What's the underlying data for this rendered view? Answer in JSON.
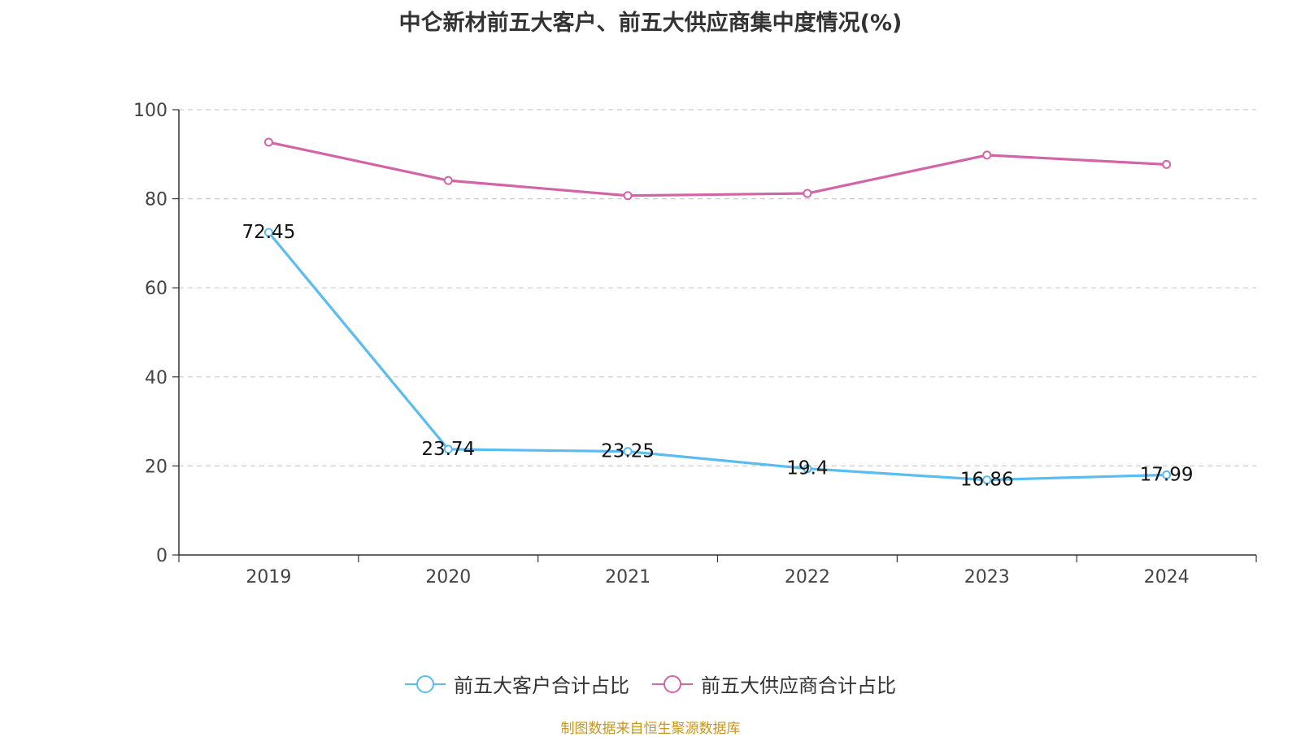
{
  "chart_data": {
    "type": "line",
    "title": "中仑新材前五大客户、前五大供应商集中度情况(%)",
    "categories": [
      "2019",
      "2020",
      "2021",
      "2022",
      "2023",
      "2024"
    ],
    "ylim": [
      0,
      100
    ],
    "yticks": [
      0,
      20,
      40,
      60,
      80,
      100
    ],
    "grid": true,
    "legend_position": "bottom",
    "series": [
      {
        "name": "前五大客户合计占比",
        "color": "#5bbcf0",
        "values": [
          72.45,
          23.74,
          23.25,
          19.4,
          16.86,
          17.99
        ],
        "labels": [
          "72.45",
          "23.74",
          "23.25",
          "19.4",
          "16.86",
          "17.99"
        ],
        "show_labels": true
      },
      {
        "name": "前五大供应商合计占比",
        "color": "#d264a8",
        "values": [
          92.7,
          84.1,
          80.7,
          81.2,
          89.8,
          87.7
        ],
        "show_labels": false
      }
    ]
  },
  "source_note": "制图数据来自恒生聚源数据库"
}
